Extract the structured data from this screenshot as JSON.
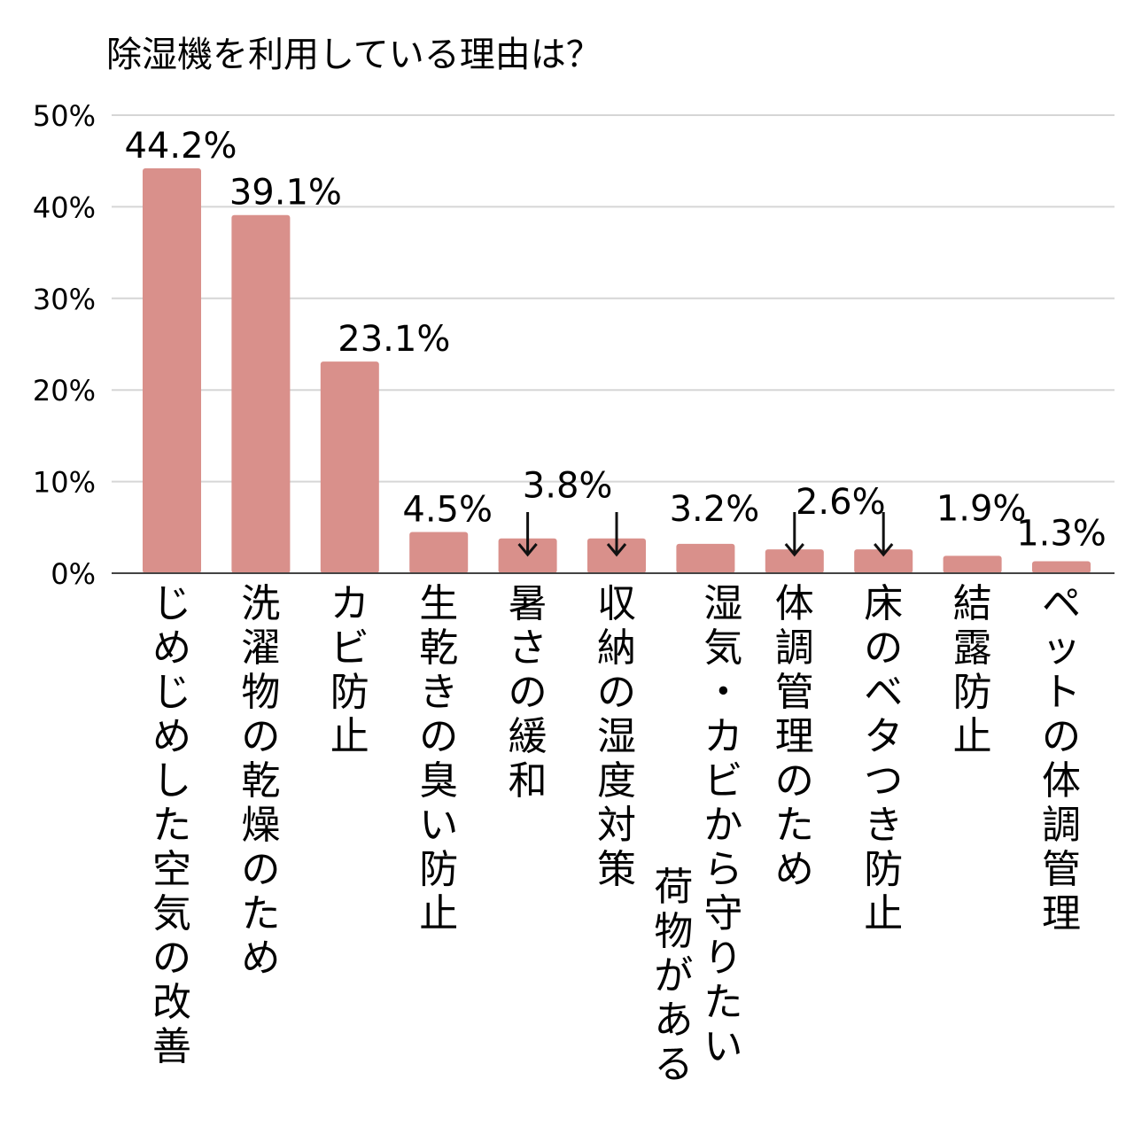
{
  "chart_data": {
    "type": "bar",
    "title": "除湿機を利用している理由は？",
    "xlabel": "",
    "ylabel": "",
    "ylim": [
      0,
      50
    ],
    "yticks": [
      "0%",
      "10%",
      "20%",
      "30%",
      "40%",
      "50%"
    ],
    "grid": true,
    "bar_color": "#d9908b",
    "categories": [
      "じめじめした空気の改善",
      "洗濯物の乾燥のため",
      "カビ防止",
      "生乾きの臭い防止",
      "暑さの緩和",
      "収納の湿度対策",
      "湿気・カビから守りたい荷物がある",
      "体調管理のため",
      "床のベタつき防止",
      "結露防止",
      "ペットの体調管理"
    ],
    "values": [
      44.2,
      39.1,
      23.1,
      4.5,
      3.8,
      3.8,
      3.2,
      2.6,
      2.6,
      1.9,
      1.3
    ],
    "value_labels": [
      "44.2%",
      "39.1%",
      "23.1%",
      "4.5%",
      "3.8%",
      "",
      "3.2%",
      "2.6%",
      "",
      "1.9%",
      "1.3%"
    ],
    "annotations": [
      "label 3.8% points with arrows to 暑さの緩和 and 収納の湿度対策",
      "label 2.6% points with arrows to 体調管理のため and 床のベタつき防止"
    ]
  }
}
